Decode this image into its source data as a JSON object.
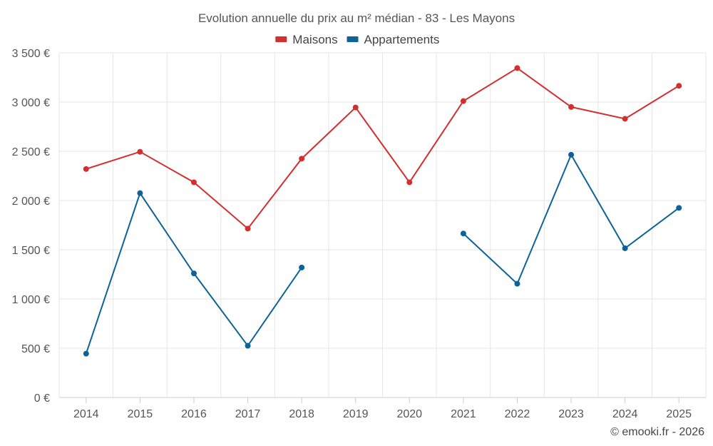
{
  "chart_data": {
    "type": "line",
    "title": "Evolution annuelle du prix au m² médian - 83 - Les Mayons",
    "categories": [
      "2014",
      "2015",
      "2016",
      "2017",
      "2018",
      "2019",
      "2020",
      "2021",
      "2022",
      "2023",
      "2024",
      "2025"
    ],
    "ylim": [
      0,
      3500
    ],
    "yticks": [
      0,
      500,
      1000,
      1500,
      2000,
      2500,
      3000,
      3500
    ],
    "ytick_labels": [
      "0 €",
      "500 €",
      "1 000 €",
      "1 500 €",
      "2 000 €",
      "2 500 €",
      "3 000 €",
      "3 500 €"
    ],
    "grid": true,
    "legend_position": "top-center",
    "series": [
      {
        "name": "Maisons",
        "color": "#d32f2f",
        "values": [
          2320,
          2495,
          2185,
          1715,
          2425,
          2945,
          2185,
          3010,
          3345,
          2950,
          2830,
          3165
        ]
      },
      {
        "name": "Appartements",
        "color": "#0d6396",
        "values": [
          445,
          2075,
          1260,
          525,
          1320,
          null,
          null,
          1665,
          1155,
          2465,
          1515,
          1925
        ]
      }
    ]
  },
  "credit": "© emooki.fr - 2026"
}
